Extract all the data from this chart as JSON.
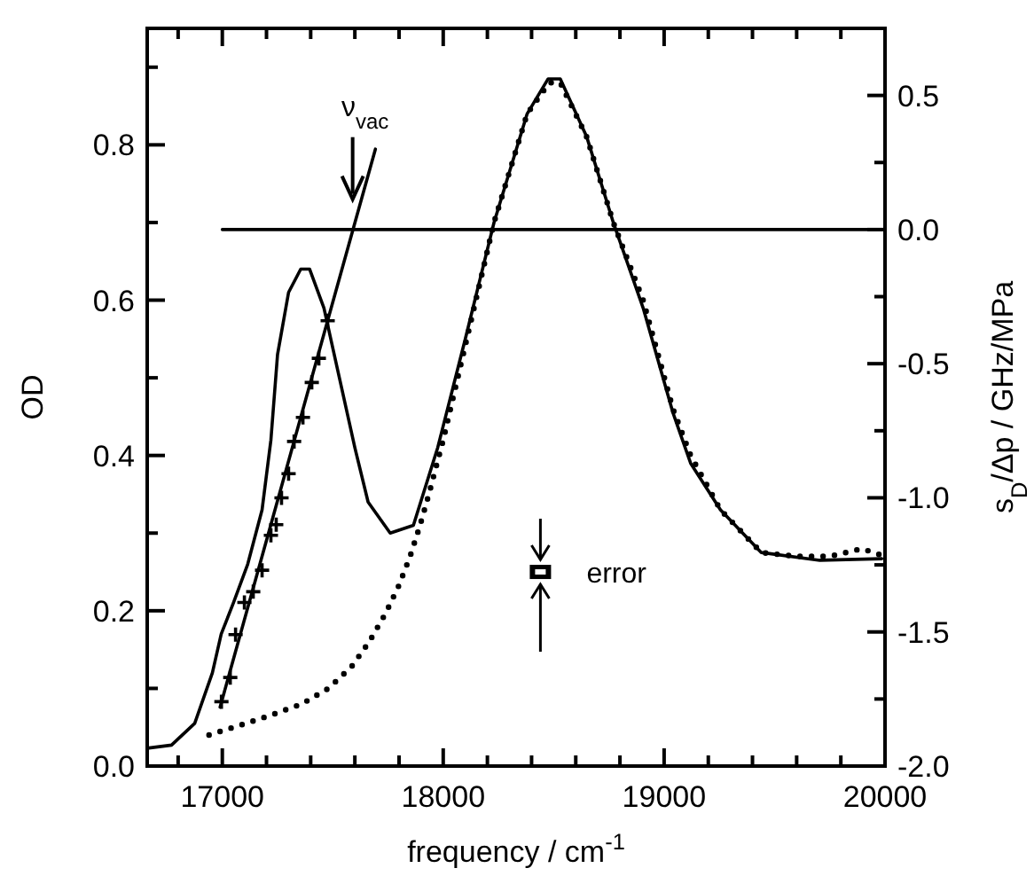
{
  "chart_data": {
    "type": "line",
    "xlabel": "frequency / cm$^{-1}$",
    "ylabel": "OD",
    "y2label": "s$_{D}$/Δp / GHz/MPa",
    "xlim": [
      16660,
      20000
    ],
    "ylim": [
      0,
      0.95
    ],
    "y2lim": [
      -2,
      0.75
    ],
    "xticks": [
      {
        "value": 16800,
        "label": null
      },
      17000,
      {
        "value": 17200,
        "label": null
      },
      {
        "value": 17400,
        "label": null
      },
      {
        "value": 17600,
        "label": null
      },
      {
        "value": 17800,
        "label": null
      },
      18000,
      {
        "value": 18200,
        "label": null
      },
      {
        "value": 18400,
        "label": null
      },
      {
        "value": 18600,
        "label": null
      },
      {
        "value": 18800,
        "label": null
      },
      19000,
      {
        "value": 19200,
        "label": null
      },
      {
        "value": 19400,
        "label": null
      },
      {
        "value": 19600,
        "label": null
      },
      {
        "value": 19800,
        "label": null
      },
      20000
    ],
    "yticks": [
      {
        "value": 0,
        "label": "0.0"
      },
      {
        "value": 0.1,
        "label": null
      },
      0.2,
      {
        "value": 0.3,
        "label": null
      },
      0.4,
      {
        "value": 0.5,
        "label": null
      },
      0.6,
      {
        "value": 0.7,
        "label": null
      },
      0.8,
      {
        "value": 0.9,
        "label": null
      }
    ],
    "y2ticks": [
      {
        "value": -2,
        "label": "-2.0"
      },
      {
        "value": -1.75,
        "label": null
      },
      -1.5,
      {
        "value": -1.25,
        "label": null
      },
      {
        "value": -1,
        "label": "-1.0"
      },
      {
        "value": -0.75,
        "label": null
      },
      -0.5,
      {
        "value": -0.25,
        "label": null
      },
      {
        "value": 0,
        "label": "0.0"
      },
      {
        "value": 0.25,
        "label": null
      },
      0.5
    ],
    "grid": false,
    "series": [
      {
        "color": "#000000",
        "line_style": "solid",
        "x": [
          16660,
          16770,
          16875,
          16955,
          16995,
          17050,
          17115,
          17180,
          17220,
          17250,
          17300,
          17355,
          17395,
          17460,
          17530,
          17600,
          17660,
          17760,
          17865,
          17975,
          18100,
          18230,
          18380,
          18475,
          18530,
          18650,
          18770,
          18905,
          19040,
          19120,
          19255,
          19440,
          19705,
          19985
        ],
        "values": [
          0.023,
          0.027,
          0.055,
          0.12,
          0.17,
          0.21,
          0.26,
          0.33,
          0.42,
          0.53,
          0.61,
          0.64,
          0.64,
          0.59,
          0.5,
          0.41,
          0.34,
          0.3,
          0.31,
          0.41,
          0.55,
          0.7,
          0.84,
          0.885,
          0.885,
          0.81,
          0.7,
          0.59,
          0.455,
          0.39,
          0.33,
          0.275,
          0.265,
          0.267
        ]
      },
      {
        "color": "#000000",
        "line_style": "dotted",
        "x": [
          16940,
          17085,
          17225,
          17360,
          17480,
          17585,
          17665,
          17740,
          17800,
          17850,
          17895,
          17935,
          18000,
          18230,
          18380,
          18480,
          18530,
          18650,
          18770,
          18905,
          19040,
          19120,
          19255,
          19440,
          19600,
          19750,
          19895,
          20000
        ],
        "values": [
          0.04,
          0.053,
          0.066,
          0.08,
          0.1,
          0.128,
          0.16,
          0.197,
          0.233,
          0.27,
          0.31,
          0.35,
          0.42,
          0.7,
          0.84,
          0.88,
          0.88,
          0.81,
          0.7,
          0.6,
          0.46,
          0.4,
          0.33,
          0.275,
          0.27,
          0.27,
          0.28,
          0.27
        ]
      },
      {
        "type": "scatter",
        "axis": "y2",
        "color": "#000000",
        "marker": "cross",
        "x": [
          16996,
          17036,
          17060,
          17100,
          17140,
          17180,
          17220,
          17244,
          17268,
          17300,
          17325,
          17365,
          17405,
          17437,
          17477
        ],
        "values": [
          -1.76,
          -1.67,
          -1.51,
          -1.39,
          -1.35,
          -1.27,
          -1.14,
          -1.1,
          -1,
          -0.91,
          -0.79,
          -0.7,
          -0.57,
          -0.48,
          -0.34
        ]
      },
      {
        "axis": "y2",
        "color": "#000000",
        "line_style": "solid",
        "x": [
          16990,
          17693
        ],
        "values": [
          -1.78,
          0.3
        ]
      },
      {
        "axis": "y2",
        "color": "#000000",
        "line_style": "solid",
        "x": [
          17000,
          20000
        ],
        "values": [
          0,
          0
        ]
      }
    ],
    "annotations": [
      {
        "text": "ν$_{vac}$",
        "x": 17590,
        "y": 0.73
      },
      "error"
    ]
  }
}
